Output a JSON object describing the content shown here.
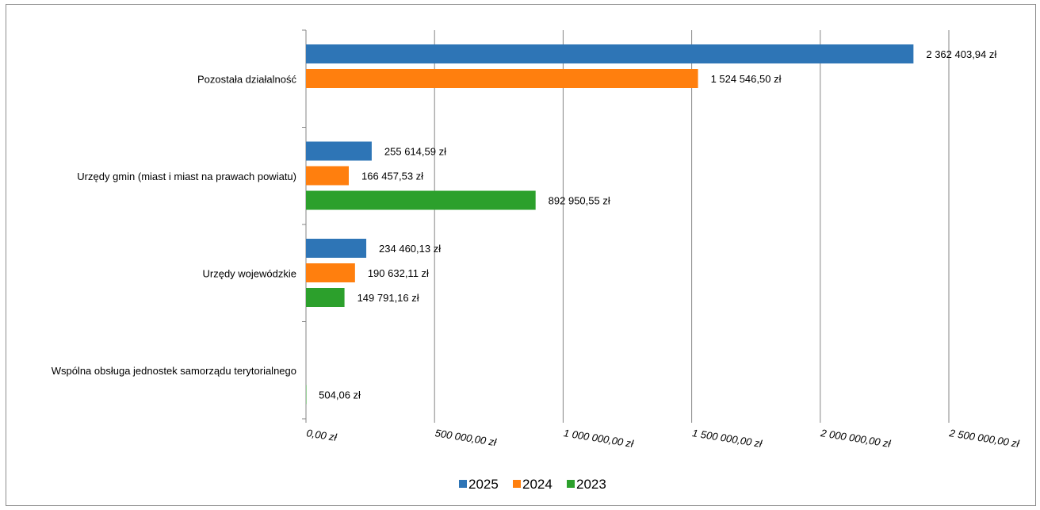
{
  "chart_data": {
    "type": "bar",
    "orientation": "horizontal",
    "categories": [
      "Pozostała działalność",
      "Urzędy gmin (miast i miast na prawach powiatu)",
      "Urzędy wojewódzkie",
      "Wspólna obsługa jednostek samorządu terytorialnego"
    ],
    "series": [
      {
        "name": "2025",
        "color": "#2e75b6",
        "values": [
          2362403.94,
          255614.59,
          234460.13,
          null
        ],
        "labels": [
          "2 362 403,94 zł",
          "255 614,59 zł",
          "234 460,13 zł",
          ""
        ]
      },
      {
        "name": "2024",
        "color": "#ff7f0e",
        "values": [
          1524546.5,
          166457.53,
          190632.11,
          null
        ],
        "labels": [
          "1 524 546,50 zł",
          "166 457,53 zł",
          "190 632,11 zł",
          ""
        ]
      },
      {
        "name": "2023",
        "color": "#2ca02c",
        "values": [
          null,
          892950.55,
          149791.16,
          504.06
        ],
        "labels": [
          "",
          "892 950,55 zł",
          "149 791,16 zł",
          "504,06 zł"
        ]
      }
    ],
    "xlim": [
      0,
      2500000
    ],
    "x_ticks": [
      0,
      500000,
      1000000,
      1500000,
      2000000,
      2500000
    ],
    "x_tick_labels": [
      "0,00 zł",
      "500 000,00 zł",
      "1 000 000,00 zł",
      "1 500 000,00 zł",
      "2 000 000,00 zł",
      "2 500 000,00 zł"
    ],
    "grid": "vertical",
    "legend_position": "bottom",
    "title": "",
    "xlabel": "",
    "ylabel": ""
  }
}
